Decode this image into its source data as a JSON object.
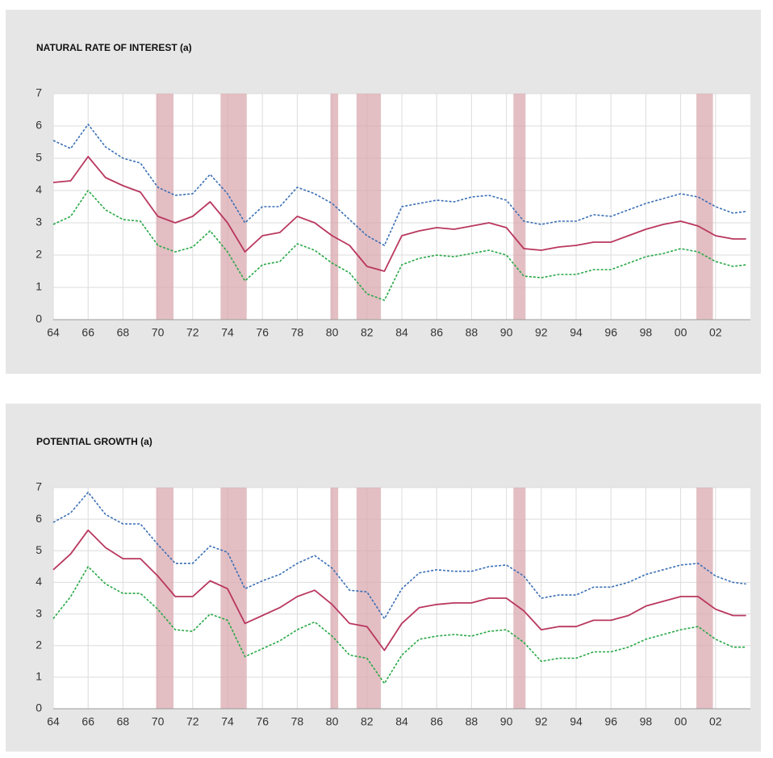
{
  "chart_data": [
    {
      "type": "line",
      "title": "NATURAL RATE OF INTEREST (a)",
      "y_unit": "%",
      "x": [
        1964,
        1965,
        1966,
        1967,
        1968,
        1969,
        1970,
        1971,
        1972,
        1973,
        1974,
        1975,
        1976,
        1977,
        1978,
        1979,
        1980,
        1981,
        1982,
        1983,
        1984,
        1985,
        1986,
        1987,
        1988,
        1989,
        1990,
        1991,
        1992,
        1993,
        1994,
        1995,
        1996,
        1997,
        1998,
        1999,
        2000,
        2001,
        2002,
        2003,
        2003.75
      ],
      "series": [
        {
          "color": "#3a6fb5",
          "dashed": true,
          "values": [
            5.55,
            5.3,
            6.05,
            5.35,
            5.0,
            4.85,
            4.1,
            3.85,
            3.9,
            4.5,
            3.9,
            3.0,
            3.5,
            3.5,
            4.1,
            3.9,
            3.6,
            3.1,
            2.6,
            2.3,
            3.5,
            3.6,
            3.7,
            3.65,
            3.8,
            3.85,
            3.7,
            3.05,
            2.95,
            3.05,
            3.05,
            3.25,
            3.2,
            3.4,
            3.6,
            3.75,
            3.9,
            3.8,
            3.5,
            3.3,
            3.35
          ]
        },
        {
          "color": "#b9375e",
          "dashed": false,
          "values": [
            4.25,
            4.3,
            5.05,
            4.4,
            4.15,
            3.95,
            3.2,
            3.0,
            3.2,
            3.65,
            3.0,
            2.1,
            2.6,
            2.7,
            3.2,
            3.0,
            2.6,
            2.3,
            1.65,
            1.5,
            2.6,
            2.75,
            2.85,
            2.8,
            2.9,
            3.0,
            2.85,
            2.2,
            2.15,
            2.25,
            2.3,
            2.4,
            2.4,
            2.6,
            2.8,
            2.95,
            3.05,
            2.9,
            2.6,
            2.5,
            2.5
          ]
        },
        {
          "color": "#27a845",
          "dashed": true,
          "values": [
            2.95,
            3.2,
            4.0,
            3.4,
            3.1,
            3.05,
            2.3,
            2.1,
            2.25,
            2.75,
            2.1,
            1.2,
            1.7,
            1.8,
            2.35,
            2.15,
            1.75,
            1.45,
            0.8,
            0.6,
            1.7,
            1.9,
            2.0,
            1.95,
            2.05,
            2.15,
            2.0,
            1.35,
            1.3,
            1.4,
            1.4,
            1.55,
            1.55,
            1.75,
            1.95,
            2.05,
            2.2,
            2.1,
            1.8,
            1.65,
            1.7
          ]
        }
      ],
      "shaded_periods": [
        [
          1969.9,
          1970.9
        ],
        [
          1973.6,
          1975.1
        ],
        [
          1979.9,
          1980.35
        ],
        [
          1981.4,
          1982.8
        ],
        [
          1990.4,
          1991.1
        ],
        [
          2000.9,
          2001.85
        ]
      ],
      "shade_color": "#d9a9b0",
      "xlim": [
        1964,
        2004
      ],
      "xticks": [
        {
          "value": 1964,
          "label": "64"
        },
        {
          "value": 1966,
          "label": "66"
        },
        {
          "value": 1968,
          "label": "68"
        },
        {
          "value": 1970,
          "label": "70"
        },
        {
          "value": 1972,
          "label": "72"
        },
        {
          "value": 1974,
          "label": "74"
        },
        {
          "value": 1976,
          "label": "76"
        },
        {
          "value": 1978,
          "label": "78"
        },
        {
          "value": 1980,
          "label": "80"
        },
        {
          "value": 1982,
          "label": "82"
        },
        {
          "value": 1984,
          "label": "84"
        },
        {
          "value": 1986,
          "label": "86"
        },
        {
          "value": 1988,
          "label": "88"
        },
        {
          "value": 1990,
          "label": "90"
        },
        {
          "value": 1992,
          "label": "92"
        },
        {
          "value": 1994,
          "label": "94"
        },
        {
          "value": 1996,
          "label": "96"
        },
        {
          "value": 1998,
          "label": "98"
        },
        {
          "value": 2000,
          "label": "00"
        },
        {
          "value": 2002,
          "label": "02"
        }
      ],
      "ylim": [
        0,
        7
      ],
      "yticks": [
        0,
        1,
        2,
        3,
        4,
        5,
        6,
        7
      ],
      "grid": true
    },
    {
      "type": "line",
      "title": "POTENTIAL GROWTH (a)",
      "y_unit": "%",
      "x": [
        1964,
        1965,
        1966,
        1967,
        1968,
        1969,
        1970,
        1971,
        1972,
        1973,
        1974,
        1975,
        1976,
        1977,
        1978,
        1979,
        1980,
        1981,
        1982,
        1983,
        1984,
        1985,
        1986,
        1987,
        1988,
        1989,
        1990,
        1991,
        1992,
        1993,
        1994,
        1995,
        1996,
        1997,
        1998,
        1999,
        2000,
        2001,
        2002,
        2003,
        2003.75
      ],
      "series": [
        {
          "color": "#3a6fb5",
          "dashed": true,
          "values": [
            5.9,
            6.2,
            6.85,
            6.15,
            5.85,
            5.85,
            5.2,
            4.6,
            4.6,
            5.15,
            4.95,
            3.8,
            4.05,
            4.25,
            4.6,
            4.85,
            4.45,
            3.75,
            3.7,
            2.85,
            3.8,
            4.3,
            4.4,
            4.35,
            4.35,
            4.5,
            4.55,
            4.2,
            3.5,
            3.6,
            3.6,
            3.85,
            3.85,
            4.0,
            4.25,
            4.4,
            4.55,
            4.6,
            4.2,
            4.0,
            3.95
          ]
        },
        {
          "color": "#b9375e",
          "dashed": false,
          "values": [
            4.4,
            4.9,
            5.65,
            5.1,
            4.75,
            4.75,
            4.2,
            3.55,
            3.55,
            4.05,
            3.8,
            2.7,
            2.95,
            3.2,
            3.55,
            3.75,
            3.3,
            2.7,
            2.6,
            1.85,
            2.7,
            3.2,
            3.3,
            3.35,
            3.35,
            3.5,
            3.5,
            3.1,
            2.5,
            2.6,
            2.6,
            2.8,
            2.8,
            2.95,
            3.25,
            3.4,
            3.55,
            3.55,
            3.15,
            2.95,
            2.95
          ]
        },
        {
          "color": "#27a845",
          "dashed": true,
          "values": [
            2.85,
            3.55,
            4.5,
            3.95,
            3.65,
            3.65,
            3.15,
            2.5,
            2.45,
            3.0,
            2.8,
            1.65,
            1.9,
            2.15,
            2.5,
            2.75,
            2.3,
            1.7,
            1.6,
            0.8,
            1.7,
            2.2,
            2.3,
            2.35,
            2.3,
            2.45,
            2.5,
            2.1,
            1.5,
            1.6,
            1.6,
            1.8,
            1.8,
            1.95,
            2.2,
            2.35,
            2.5,
            2.6,
            2.2,
            1.95,
            1.95
          ]
        }
      ],
      "shaded_periods": [
        [
          1969.9,
          1970.9
        ],
        [
          1973.6,
          1975.1
        ],
        [
          1979.9,
          1980.35
        ],
        [
          1981.4,
          1982.8
        ],
        [
          1990.4,
          1991.1
        ],
        [
          2000.9,
          2001.85
        ]
      ],
      "shade_color": "#d9a9b0",
      "xlim": [
        1964,
        2004
      ],
      "xticks": [
        {
          "value": 1964,
          "label": "64"
        },
        {
          "value": 1966,
          "label": "66"
        },
        {
          "value": 1968,
          "label": "68"
        },
        {
          "value": 1970,
          "label": "70"
        },
        {
          "value": 1972,
          "label": "72"
        },
        {
          "value": 1974,
          "label": "74"
        },
        {
          "value": 1976,
          "label": "76"
        },
        {
          "value": 1978,
          "label": "78"
        },
        {
          "value": 1980,
          "label": "80"
        },
        {
          "value": 1982,
          "label": "82"
        },
        {
          "value": 1984,
          "label": "84"
        },
        {
          "value": 1986,
          "label": "86"
        },
        {
          "value": 1988,
          "label": "88"
        },
        {
          "value": 1990,
          "label": "90"
        },
        {
          "value": 1992,
          "label": "92"
        },
        {
          "value": 1994,
          "label": "94"
        },
        {
          "value": 1996,
          "label": "96"
        },
        {
          "value": 1998,
          "label": "98"
        },
        {
          "value": 2000,
          "label": "00"
        },
        {
          "value": 2002,
          "label": "02"
        }
      ],
      "ylim": [
        0,
        7
      ],
      "yticks": [
        0,
        1,
        2,
        3,
        4,
        5,
        6,
        7
      ],
      "grid": true
    }
  ]
}
